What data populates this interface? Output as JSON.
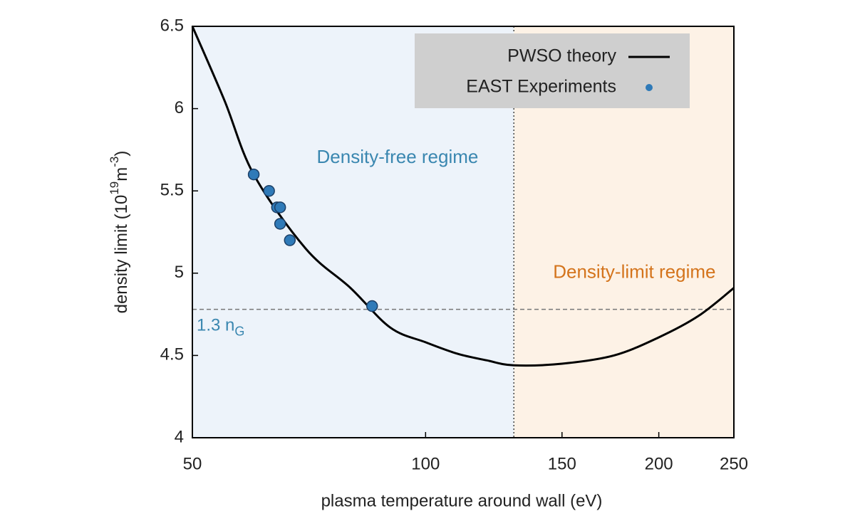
{
  "chart_data": {
    "type": "line",
    "x_label": "plasma temperature around wall (eV)",
    "y_label_parts": [
      "density limit (10",
      "19",
      "m",
      "-3",
      ")"
    ],
    "xscale": "log",
    "xlim": [
      50,
      250
    ],
    "xticks": [
      50,
      100,
      150,
      200,
      250
    ],
    "ylim": [
      4,
      6.5
    ],
    "yticks": [
      4,
      4.5,
      5,
      5.5,
      6,
      6.5
    ],
    "legend": "upper right",
    "series": [
      {
        "name": "PWSO theory",
        "mode": "line",
        "color": "#000000",
        "x": [
          50,
          55,
          60,
          70,
          80,
          90,
          100,
          110,
          120,
          130,
          150,
          175,
          200,
          225,
          250
        ],
        "values": [
          6.5,
          6.05,
          5.6,
          5.15,
          4.91,
          4.67,
          4.58,
          4.51,
          4.47,
          4.44,
          4.45,
          4.5,
          4.61,
          4.74,
          4.91
        ]
      },
      {
        "name": "EAST Experiments",
        "mode": "markers",
        "color": "#2f7ab8",
        "x": [
          60,
          62.8,
          64.3,
          64.9,
          64.9,
          66.8,
          85.3
        ],
        "values": [
          5.6,
          5.5,
          5.4,
          5.4,
          5.3,
          5.2,
          4.8
        ]
      }
    ],
    "regime_boundary": 130,
    "regions": [
      {
        "label": "Density-free regime",
        "color": "#edf3fa",
        "text_color": "#3a87b0",
        "x": 92,
        "y": 5.7
      },
      {
        "label": "Density-limit regime",
        "color": "#fdf2e6",
        "text_color": "#d4741c",
        "x": 186,
        "y": 5.0
      }
    ],
    "threshold": {
      "value": 4.78,
      "label_parts": [
        "1.3 n",
        "G"
      ],
      "color": "#3a87b0"
    }
  }
}
